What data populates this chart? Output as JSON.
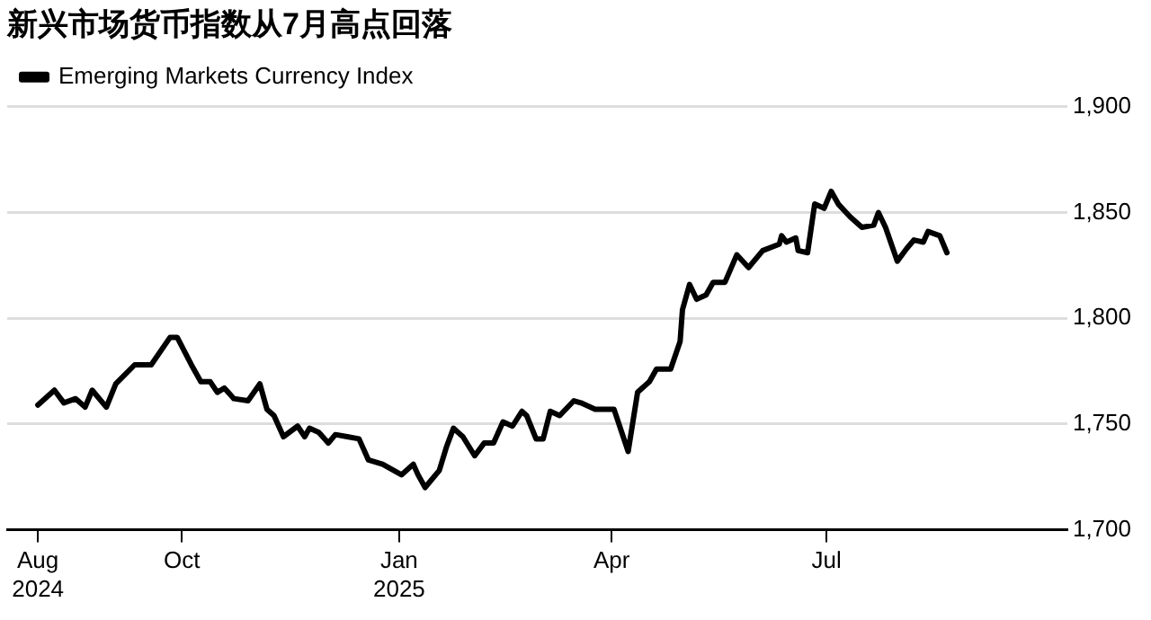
{
  "chart_data": {
    "type": "line",
    "title": "新兴市场货币指数从7月高点回落",
    "series": [
      {
        "name": "Emerging Markets Currency Index",
        "color": "#000000",
        "x": [
          "2024-08-01",
          "2024-08-08",
          "2024-08-12",
          "2024-08-17",
          "2024-08-21",
          "2024-08-24",
          "2024-08-30",
          "2024-09-03",
          "2024-09-11",
          "2024-09-18",
          "2024-09-26",
          "2024-09-29",
          "2024-10-05",
          "2024-10-09",
          "2024-10-13",
          "2024-10-16",
          "2024-10-19",
          "2024-10-23",
          "2024-10-29",
          "2024-11-03",
          "2024-11-06",
          "2024-11-09",
          "2024-11-13",
          "2024-11-19",
          "2024-11-22",
          "2024-11-24",
          "2024-11-28",
          "2024-12-02",
          "2024-12-05",
          "2024-12-10",
          "2024-12-15",
          "2024-12-19",
          "2024-12-25",
          "2025-01-02",
          "2025-01-07",
          "2025-01-09",
          "2025-01-12",
          "2025-01-18",
          "2025-01-21",
          "2025-01-24",
          "2025-01-28",
          "2025-02-02",
          "2025-02-06",
          "2025-02-10",
          "2025-02-14",
          "2025-02-18",
          "2025-02-22",
          "2025-02-24",
          "2025-02-28",
          "2025-03-03",
          "2025-03-06",
          "2025-03-10",
          "2025-03-16",
          "2025-03-19",
          "2025-03-25",
          "2025-04-02",
          "2025-04-08",
          "2025-04-12",
          "2025-04-17",
          "2025-04-20",
          "2025-04-26",
          "2025-04-30",
          "2025-05-01",
          "2025-05-04",
          "2025-05-07",
          "2025-05-11",
          "2025-05-14",
          "2025-05-19",
          "2025-05-24",
          "2025-05-29",
          "2025-06-04",
          "2025-06-11",
          "2025-06-12",
          "2025-06-14",
          "2025-06-18",
          "2025-06-19",
          "2025-06-23",
          "2025-06-26",
          "2025-06-30",
          "2025-07-03",
          "2025-07-06",
          "2025-07-11",
          "2025-07-16",
          "2025-07-21",
          "2025-07-23",
          "2025-07-26",
          "2025-07-31",
          "2025-08-04",
          "2025-08-07",
          "2025-08-11",
          "2025-08-13",
          "2025-08-18",
          "2025-08-21"
        ],
        "values": [
          1759,
          1766,
          1760,
          1762,
          1758,
          1766,
          1758,
          1769,
          1778,
          1778,
          1791,
          1791,
          1778,
          1770,
          1770,
          1765,
          1767,
          1762,
          1761,
          1769,
          1757,
          1754,
          1744,
          1749,
          1744,
          1748,
          1746,
          1741,
          1745,
          1744,
          1743,
          1733,
          1731,
          1726,
          1731,
          1726,
          1720,
          1728,
          1739,
          1748,
          1744,
          1735,
          1741,
          1741,
          1751,
          1749,
          1756,
          1754,
          1743,
          1743,
          1756,
          1754,
          1761,
          1760,
          1757,
          1757,
          1737,
          1765,
          1770,
          1776,
          1776,
          1789,
          1804,
          1816,
          1809,
          1811,
          1817,
          1817,
          1830,
          1824,
          1832,
          1835,
          1839,
          1836,
          1838,
          1832,
          1831,
          1854,
          1852,
          1860,
          1854,
          1848,
          1843,
          1844,
          1850,
          1843,
          1827,
          1833,
          1837,
          1836,
          1841,
          1839,
          1831
        ]
      }
    ],
    "xlim": [
      "2024-07-19",
      "2025-10-11"
    ],
    "xticks": [
      {
        "value": "2024-08-01",
        "label": "Aug 2024"
      },
      {
        "value": "2024-10-01",
        "label": "Oct"
      },
      {
        "value": "2025-01-01",
        "label": "Jan 2025"
      },
      {
        "value": "2025-04-01",
        "label": "Apr"
      },
      {
        "value": "2025-07-01",
        "label": "Jul"
      }
    ],
    "ylim": [
      1700,
      1900
    ],
    "yticks": [
      {
        "value": 1700,
        "label": "1,700"
      },
      {
        "value": 1750,
        "label": "1,750"
      },
      {
        "value": 1800,
        "label": "1,800"
      },
      {
        "value": 1850,
        "label": "1,850"
      },
      {
        "value": 1900,
        "label": "1,900"
      }
    ],
    "grid": "y",
    "legend": "top left",
    "marker": "none",
    "line_style": "solid"
  }
}
